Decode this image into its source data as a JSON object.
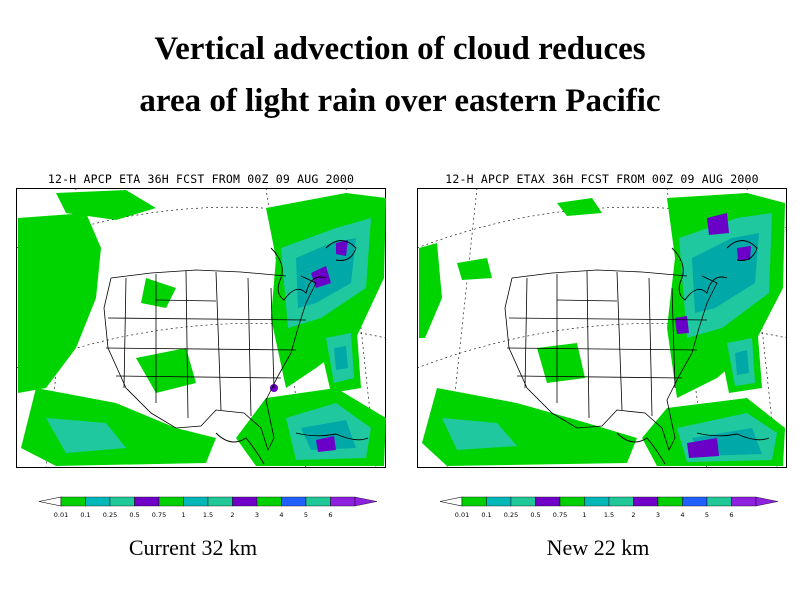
{
  "title": {
    "line1": "Vertical advection of cloud reduces",
    "line2": "area of light rain over eastern Pacific"
  },
  "panels": [
    {
      "map_title": "12-H APCP ETA 36H FCST FROM 00Z 09 AUG 2000",
      "caption": "Current 32 km"
    },
    {
      "map_title": "12-H APCP ETAX 36H FCST FROM 00Z 09 AUG 2000",
      "caption": "New 22 km"
    }
  ],
  "legend": {
    "levels": [
      "0.01",
      "0.1",
      "0.25",
      "0.5",
      "0.75",
      "1",
      "1.5",
      "2",
      "3",
      "4",
      "5",
      "6"
    ],
    "colors": [
      "#00d000",
      "#00b8b8",
      "#20c898",
      "#7000c8",
      "#00d000",
      "#00b8b8",
      "#20c898",
      "#7000c8",
      "#00d000",
      "#2060ff",
      "#20c898",
      "#9020e0"
    ]
  },
  "colors": {
    "rain_light": "#00d400",
    "rain_mid": "#20c8a0",
    "rain_heavy": "#00a8a8",
    "rain_max": "#6a00c8"
  }
}
